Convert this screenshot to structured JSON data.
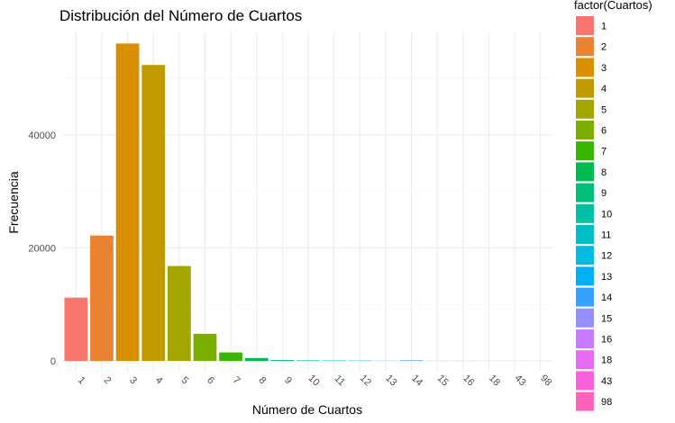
{
  "chart_data": {
    "type": "bar",
    "title": "Distribución del Número de Cuartos",
    "xlabel": "Número de Cuartos",
    "ylabel": "Frecuencia",
    "categories": [
      "1",
      "2",
      "3",
      "4",
      "5",
      "6",
      "7",
      "8",
      "9",
      "10",
      "11",
      "12",
      "13",
      "14",
      "15",
      "16",
      "18",
      "43",
      "98"
    ],
    "values": [
      11200,
      22200,
      56200,
      52400,
      16800,
      4800,
      1500,
      500,
      150,
      100,
      80,
      60,
      20,
      100,
      10,
      10,
      5,
      2,
      2
    ],
    "colors": [
      "#F8766D",
      "#EA8331",
      "#D89000",
      "#C09B00",
      "#A3A500",
      "#7CAE00",
      "#39B600",
      "#00BB4E",
      "#00BF7D",
      "#00C1A3",
      "#00BFC4",
      "#00BAE0",
      "#00B0F6",
      "#35A2FF",
      "#9590FF",
      "#C77CFF",
      "#E76BF3",
      "#FA62DB",
      "#FF62BC"
    ],
    "ylim": [
      0,
      58000
    ],
    "yticks": [
      0,
      20000,
      40000
    ],
    "ytick_labels": [
      "0",
      "20000",
      "40000"
    ],
    "legend": {
      "title": "factor(Cuartos)",
      "position": "right"
    },
    "grid": true
  }
}
